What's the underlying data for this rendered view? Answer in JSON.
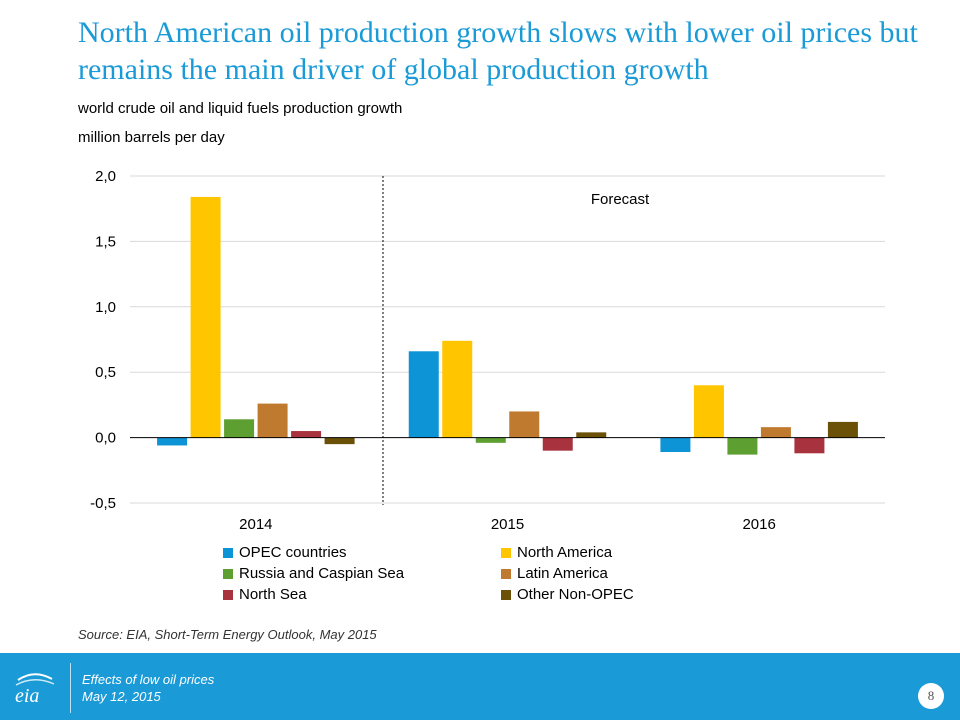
{
  "slide": {
    "title": "North American oil production growth slows with lower oil prices but remains the main driver of global production growth",
    "source": "Source: EIA, Short-Term Energy Outlook, May 2015",
    "footer_line1": "Effects of low oil prices",
    "footer_line2": "May 12, 2015",
    "page_number": "8",
    "colors": {
      "accent": "#1a9ad6"
    },
    "logo_icon": "eia-logo-icon"
  },
  "chart_data": {
    "type": "bar",
    "title": "world crude oil and liquid fuels production growth",
    "ylabel": "million barrels per day",
    "xlabel": "",
    "categories": [
      "2014",
      "2015",
      "2016"
    ],
    "ylim": [
      -0.5,
      2.0
    ],
    "yticks": [
      "-0,5",
      "0,0",
      "0,5",
      "1,0",
      "1,5",
      "2,0"
    ],
    "ytick_values": [
      -0.5,
      0.0,
      0.5,
      1.0,
      1.5,
      2.0
    ],
    "grid": true,
    "legend_position": "bottom",
    "annotation": "Forecast",
    "series": [
      {
        "name": "OPEC countries",
        "color": "#0d94d6",
        "values": [
          -0.06,
          0.66,
          -0.11
        ]
      },
      {
        "name": "North America",
        "color": "#ffc600",
        "values": [
          1.84,
          0.74,
          0.4
        ]
      },
      {
        "name": "Russia and Caspian Sea",
        "color": "#5e9f32",
        "values": [
          0.14,
          -0.04,
          -0.13
        ]
      },
      {
        "name": "Latin America",
        "color": "#c07a2f",
        "values": [
          0.26,
          0.2,
          0.08
        ]
      },
      {
        "name": "North Sea",
        "color": "#a8323d",
        "values": [
          0.05,
          -0.1,
          -0.12
        ]
      },
      {
        "name": "Other Non-OPEC",
        "color": "#6b5008",
        "values": [
          -0.05,
          0.04,
          0.12
        ]
      }
    ]
  }
}
